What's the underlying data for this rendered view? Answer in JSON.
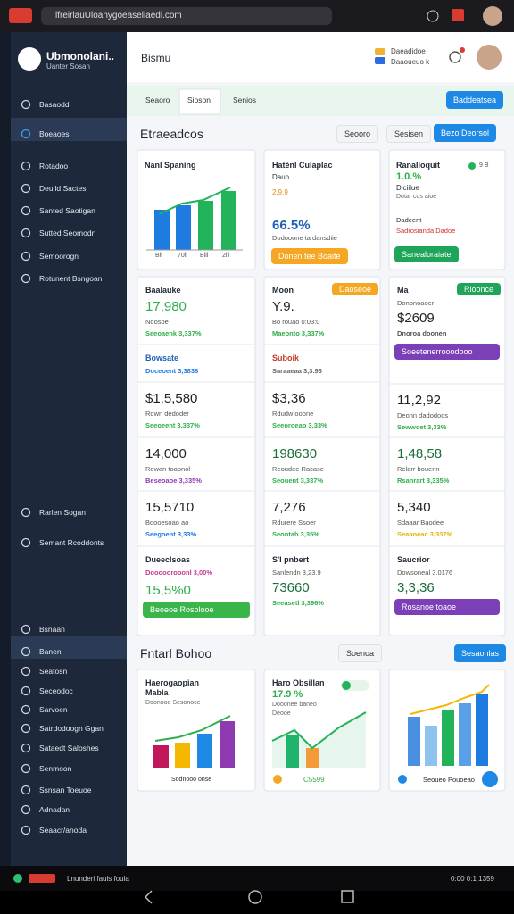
{
  "browser": {
    "url": "lfreirlauUloanygoeaseliaedi.com"
  },
  "sidebar": {
    "brand": "Ubmonolani..",
    "tagline": "Uanter Sosan",
    "nav": [
      "Basaodd",
      "Boeaoes",
      "Rotadoo",
      "Deulld Sactes",
      "Santed Saotigan",
      "Sutted Seomodn",
      "Semoorogn",
      "Rotunent Bsngoan",
      "Rarlen Sogan",
      "Semant Rcoddonts",
      "Bsnaan",
      "Banen",
      "Seatosn",
      "Seceodoc",
      "Sarvoen",
      "Satrdodoogn Ggan",
      "Sataedt Saloshes",
      "Senmoon",
      "Ssnsan Toeuoe",
      "Adnadan",
      "Seaacr/anoda"
    ]
  },
  "header": {
    "title": "Bismu",
    "user_name": "Daeadidoe",
    "user_role": "Daaoueuo k"
  },
  "tabs": {
    "items": [
      "Seaoro",
      "Sipson",
      "Senios"
    ],
    "action": "Baddeatsea"
  },
  "section1": {
    "title": "Etraeadcos",
    "buttons": [
      "Seooro",
      "Sesisen",
      "Bezo Deorsol"
    ]
  },
  "overview": [
    {
      "title": "Nanl Spaning",
      "axis": [
        "Bit",
        "70il",
        "Biil",
        "2ili"
      ]
    },
    {
      "title": "Haténl Culaplac",
      "subtitle": "Daun",
      "note": "2.9.9",
      "value": "66.5%",
      "caption": "Dodooone ta dansdiie",
      "button": "Donen tee Boaite"
    },
    {
      "title": "Ranalloquit",
      "toggle": "9 B",
      "value": "1.0.%",
      "caption": "Diciilue",
      "detail": "Dotar cos aioe",
      "label": "Dadeent",
      "alert": "Sadrosianda Dadoe",
      "button": "Sanealoraiate"
    }
  ],
  "stats": [
    [
      {
        "title": "Baalauke",
        "value": "17,980",
        "caption": "Noosoe",
        "change": "Seeoaenk 3,337%"
      },
      {
        "title": "Bowsate",
        "change": "Doceoent 3,3838"
      },
      {
        "value": "$1,5,580",
        "caption": "Rdwn dedoder",
        "change": "Seeoeent 3,337%"
      },
      {
        "value": "14,000",
        "caption": "Rdwan toaonol",
        "change": "Beseoaoe 3,335%"
      },
      {
        "value": "15,5710",
        "caption": "Bdooesoao ao",
        "change": "Seegoent 3,33%"
      },
      {
        "title": "Dueeclsoas",
        "change": "Dooooorooonl 3,00%",
        "value": "15,5%0",
        "button": "Beoeoe Rosolooe"
      }
    ],
    [
      {
        "title": "Moon",
        "pill": "Daoseoe",
        "value": "Y.9.",
        "caption": "Bo rouao 0:03:0",
        "change": "Maeonto 3,337%"
      },
      {
        "title": "Suboik",
        "change": "Saraaeaa 3,3.93"
      },
      {
        "value": "$3,36",
        "caption": "Rdudw ooone",
        "change": "Seeoroeao 3,33%"
      },
      {
        "value": "198630",
        "caption": "Reoudee Racase",
        "change": "Seouent 3,337%"
      },
      {
        "value": "7,276",
        "caption": "Rdurere Ssoer",
        "change": "Seontah 3,35%"
      },
      {
        "title": "S'l pnbert",
        "caption": "Sanlendn 3,23.9",
        "value": "73660",
        "change": "Seeasetl 3,396%"
      }
    ],
    [
      {
        "title": "Ma",
        "pill": "Rloonce",
        "caption": "Dononoaoer",
        "value": "$2609",
        "change": "Dnoroa doonen",
        "button": "Soeetenerrooodooo"
      },
      {
        "value": "11,2,92",
        "caption": "Deonn dadodoos",
        "change": "Sewwoet 3,33%"
      },
      {
        "value": "1,48,58",
        "caption": "Relarr bouenn",
        "change": "Rsanrart 3,335%"
      },
      {
        "value": "5,340",
        "caption": "Sdaaar Baodee",
        "change": "Seaaoeac 3,337%"
      },
      {
        "title": "Saucrior",
        "caption": "Dowsoneal 3.0176",
        "value": "3,3,36",
        "button": "Rosanoe toaoe"
      }
    ]
  ],
  "section2": {
    "title": "Fntarl Bohoo",
    "buttons": [
      "Soenoa",
      "Sesaohlas"
    ]
  },
  "insights": [
    {
      "title": "Haerogaopian",
      "subtitle": "Mabla",
      "caption": "Doonooe Sesonoce",
      "footer": "Sodnooo onse"
    },
    {
      "title": "Haro Obsillan",
      "value": "17.9 %",
      "caption": "Dooonee baneo",
      "detail": "Deooe",
      "footer": "C5599"
    },
    {
      "footer": "Seoueo Pouoeao"
    }
  ],
  "footer": {
    "status_left": "Lnunderi fauls foula",
    "status_right": "0:00 0:1 1359"
  }
}
